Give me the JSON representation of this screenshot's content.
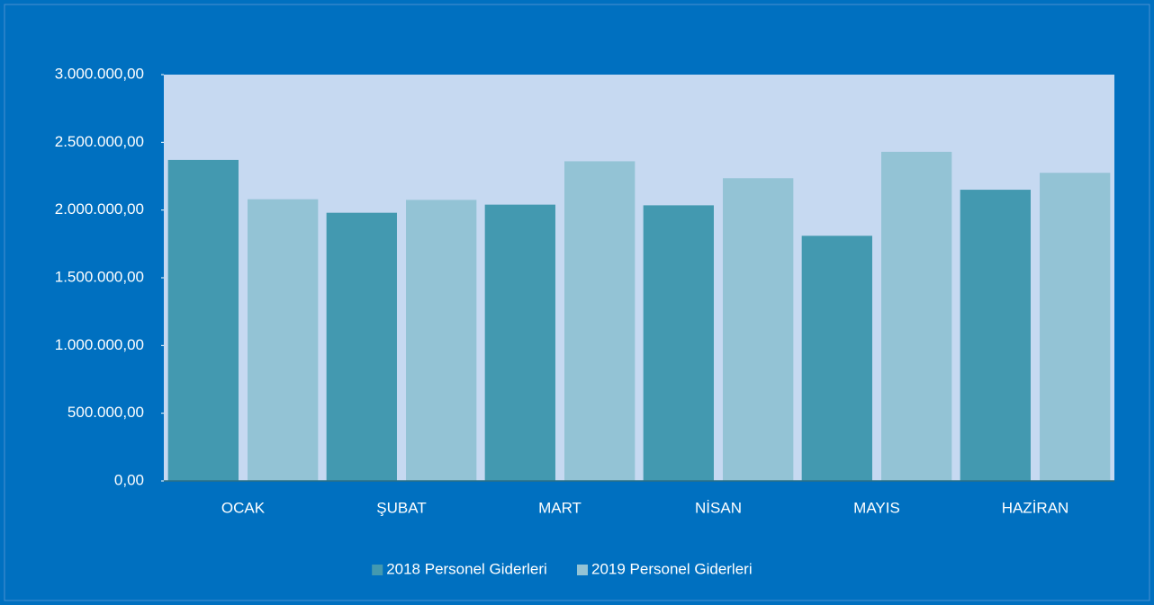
{
  "chart_data": {
    "type": "bar",
    "categories": [
      "OCAK",
      "ŞUBAT",
      "MART",
      "NİSAN",
      "MAYIS",
      "HAZİRAN"
    ],
    "series": [
      {
        "name": "2018 Personel Giderleri",
        "color": "#4399b0",
        "values": [
          2370000,
          1980000,
          2040000,
          2035000,
          1810000,
          2150000
        ]
      },
      {
        "name": "2019 Personel Giderleri",
        "color": "#93c3d5",
        "values": [
          2080000,
          2075000,
          2360000,
          2235000,
          2430000,
          2275000
        ]
      }
    ],
    "ylim": [
      0,
      3000000
    ],
    "yticks": [
      {
        "value": 0,
        "label": "0,00"
      },
      {
        "value": 500000,
        "label": "500.000,00"
      },
      {
        "value": 1000000,
        "label": "1.000.000,00"
      },
      {
        "value": 1500000,
        "label": "1.500.000,00"
      },
      {
        "value": 2000000,
        "label": "2.000.000,00"
      },
      {
        "value": 2500000,
        "label": "2.500.000,00"
      },
      {
        "value": 3000000,
        "label": "3.000.000,00"
      }
    ],
    "grid": false,
    "legend": "bottom"
  }
}
